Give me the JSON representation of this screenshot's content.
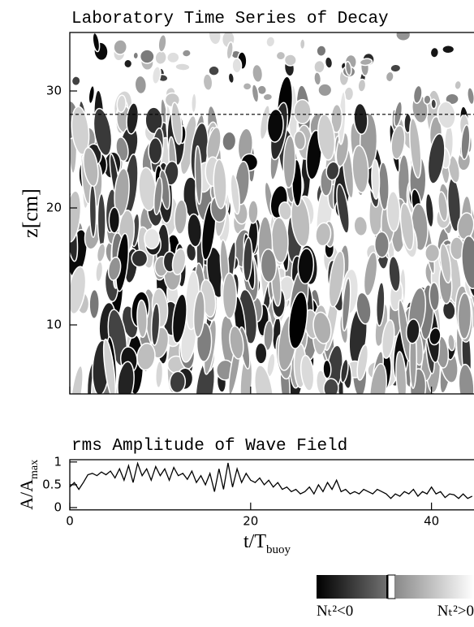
{
  "chart_data": [
    {
      "type": "field",
      "title": "Laboratory Time Series of Decay",
      "y_label": "z[cm]",
      "xlim": [
        0,
        44.7
      ],
      "xticks": [
        0,
        20,
        40
      ],
      "ylim": [
        4.1,
        35
      ],
      "yticks": [
        10,
        20,
        30
      ],
      "reference_line": 28,
      "colorbar_labels": [
        "Nₜ²<0",
        "Nₜ²>0"
      ]
    },
    {
      "type": "line",
      "title": "rms Amplitude of Wave Field",
      "y_label": "A/A",
      "y_label_sub": "max",
      "x_label": "t/T",
      "x_label_sub": "buoy",
      "color": "#000000",
      "xlim": [
        0,
        44.7
      ],
      "xticks": [
        0,
        20,
        40
      ],
      "ylim": [
        -0.05,
        1.05
      ],
      "yticks": [
        0,
        0.5,
        1
      ],
      "x": [
        0,
        0.5,
        1,
        1.5,
        2,
        2.5,
        3,
        3.5,
        4,
        4.5,
        5,
        5.5,
        6,
        6.5,
        7,
        7.5,
        8,
        8.5,
        9,
        9.5,
        10,
        10.5,
        11,
        11.5,
        12,
        12.5,
        13,
        13.5,
        14,
        14.5,
        15,
        15.5,
        16,
        16.5,
        17,
        17.5,
        18,
        18.5,
        19,
        19.5,
        20,
        20.5,
        21,
        21.5,
        22,
        22.5,
        23,
        23.5,
        24,
        24.5,
        25,
        25.5,
        26,
        26.5,
        27,
        27.5,
        28,
        28.5,
        29,
        29.5,
        30,
        30.5,
        31,
        31.5,
        32,
        32.5,
        33,
        33.5,
        34,
        34.5,
        35,
        35.5,
        36,
        36.5,
        37,
        37.5,
        38,
        38.5,
        39,
        39.5,
        40,
        40.5,
        41,
        41.5,
        42,
        42.5,
        43,
        43.5,
        44,
        44.5
      ],
      "values": [
        0.45,
        0.55,
        0.4,
        0.55,
        0.72,
        0.75,
        0.7,
        0.78,
        0.72,
        0.8,
        0.65,
        0.85,
        0.6,
        0.92,
        0.55,
        0.97,
        0.7,
        0.85,
        0.6,
        0.9,
        0.7,
        0.85,
        0.6,
        0.88,
        0.7,
        0.75,
        0.62,
        0.8,
        0.55,
        0.7,
        0.5,
        0.75,
        0.35,
        0.85,
        0.4,
        0.98,
        0.45,
        0.85,
        0.55,
        0.75,
        0.6,
        0.55,
        0.65,
        0.5,
        0.6,
        0.45,
        0.55,
        0.4,
        0.45,
        0.35,
        0.4,
        0.3,
        0.35,
        0.45,
        0.3,
        0.5,
        0.35,
        0.55,
        0.4,
        0.6,
        0.35,
        0.4,
        0.3,
        0.35,
        0.3,
        0.4,
        0.35,
        0.3,
        0.4,
        0.35,
        0.3,
        0.2,
        0.3,
        0.25,
        0.35,
        0.3,
        0.4,
        0.25,
        0.35,
        0.3,
        0.45,
        0.3,
        0.35,
        0.22,
        0.3,
        0.28,
        0.2,
        0.3,
        0.2,
        0.25
      ]
    }
  ]
}
